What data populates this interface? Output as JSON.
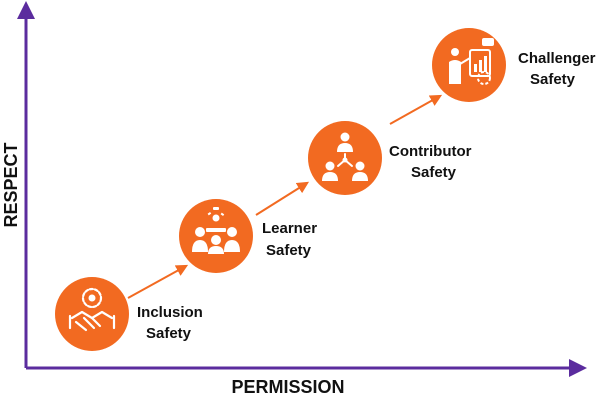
{
  "axes": {
    "x_label": "PERMISSION",
    "y_label": "RESPECT"
  },
  "colors": {
    "axis": "#5b2c9e",
    "circle": "#f26a21",
    "arrow": "#f26a21",
    "icon": "#ffffff",
    "text": "#111111"
  },
  "stages": [
    {
      "line1": "Inclusion",
      "line2": "Safety",
      "icon": "handshake-gear-icon"
    },
    {
      "line1": "Learner",
      "line2": "Safety",
      "icon": "classroom-team-icon"
    },
    {
      "line1": "Contributor",
      "line2": "Safety",
      "icon": "network-people-icon"
    },
    {
      "line1": "Challenger",
      "line2": "Safety",
      "icon": "presenter-chart-icon"
    }
  ]
}
